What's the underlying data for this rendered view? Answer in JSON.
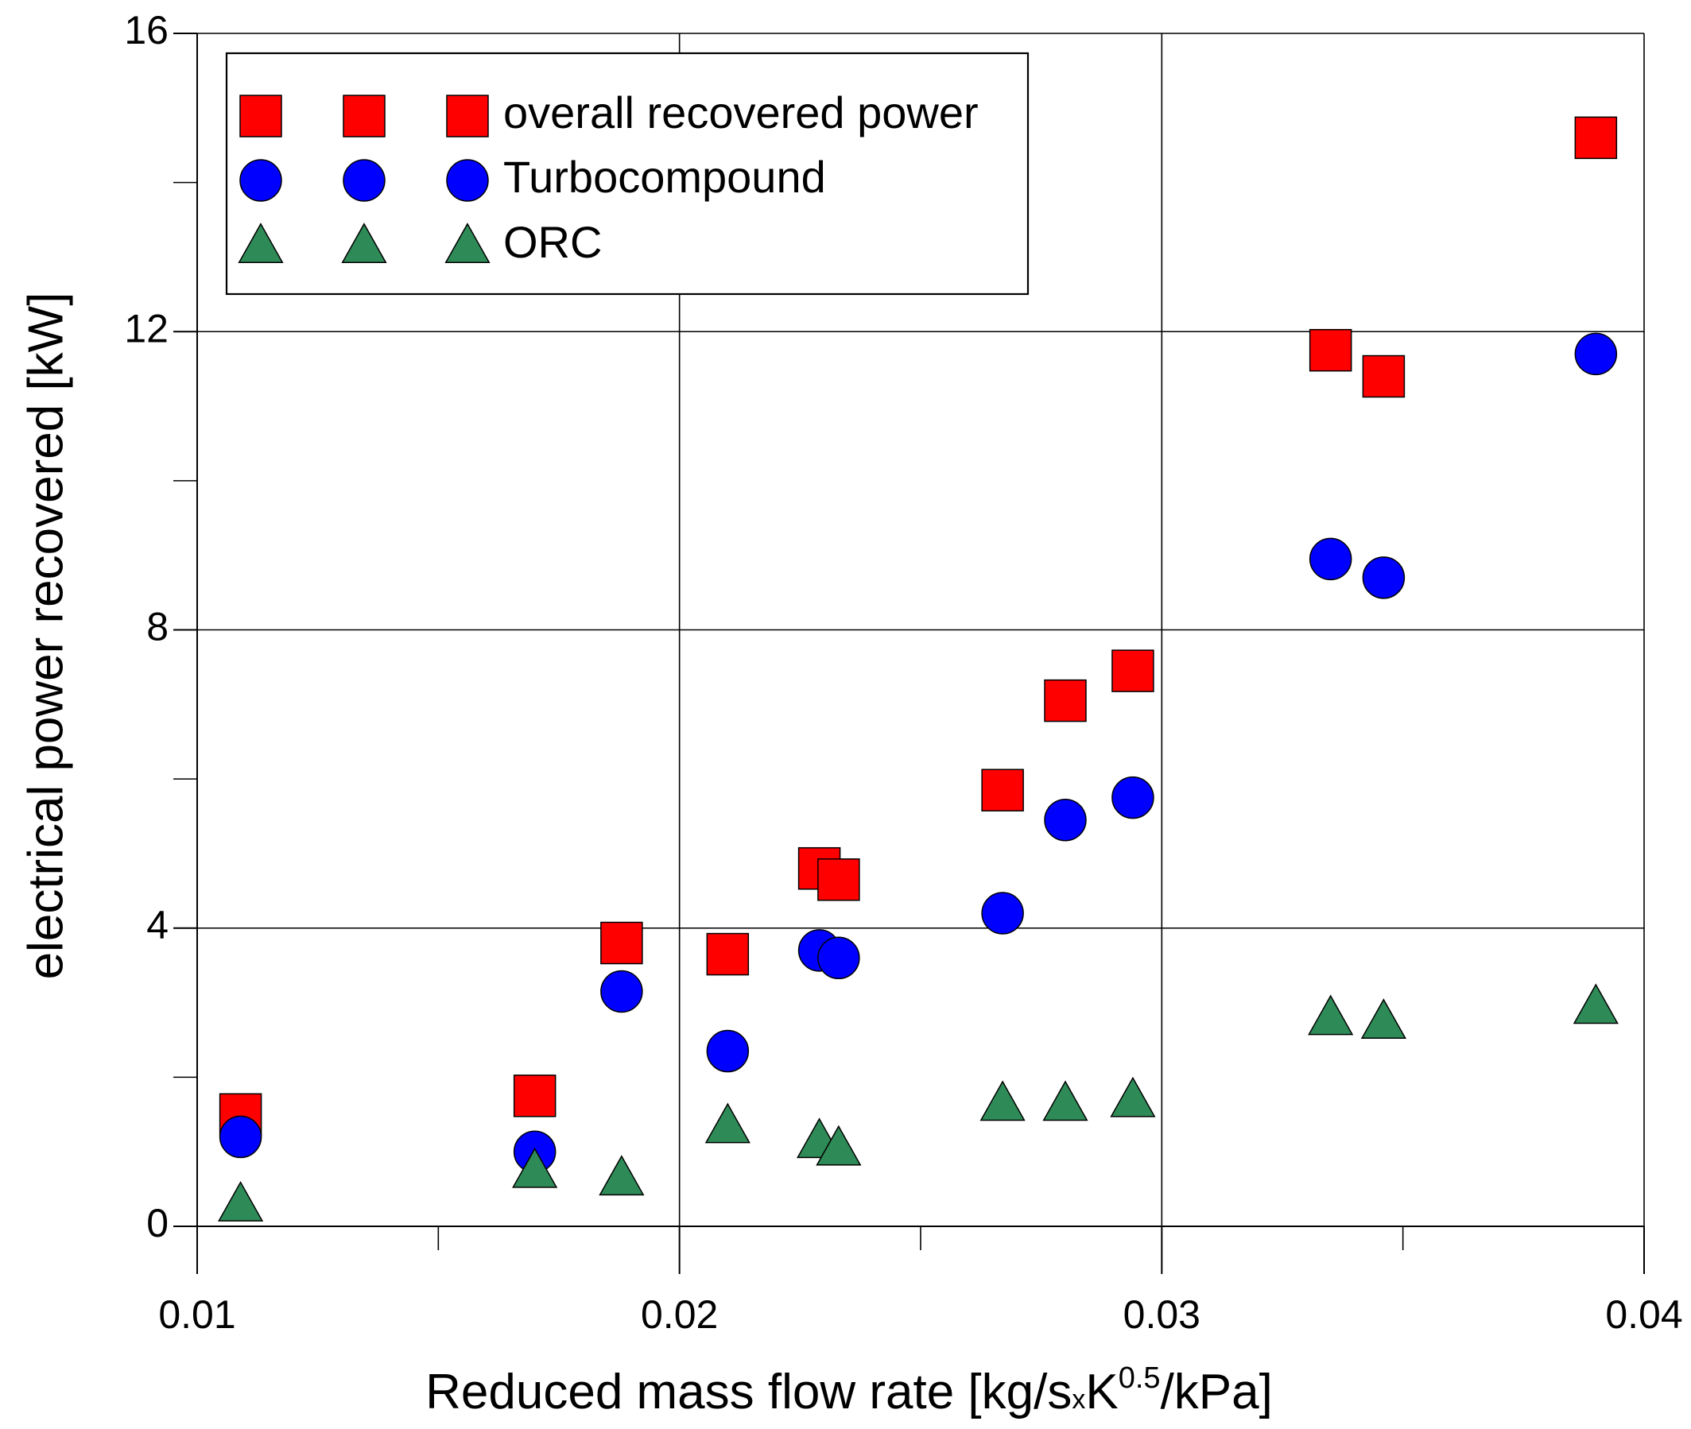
{
  "chart_data": {
    "type": "scatter",
    "title": "",
    "xlabel": {
      "main": "Reduced mass flow rate [kg/s",
      "mult": "x",
      "k": "K",
      "exp": "0.5",
      "rest": "/kPa]"
    },
    "ylabel": "electrical power recovered [kW]",
    "xlim": [
      0.01,
      0.04
    ],
    "ylim": [
      0,
      16
    ],
    "x_major_ticks": [
      0.01,
      0.02,
      0.03,
      0.04
    ],
    "x_tick_labels": [
      "0.01",
      "0.02",
      "0.03",
      "0.04"
    ],
    "x_minor_ticks": [
      0.015,
      0.025,
      0.035
    ],
    "y_major_ticks": [
      0,
      4,
      8,
      12,
      16
    ],
    "y_tick_labels": [
      "0",
      "4",
      "8",
      "12",
      "16"
    ],
    "y_minor_ticks": [
      2,
      6,
      10,
      14
    ],
    "grid": true,
    "legend_position": "top-left",
    "series": [
      {
        "name": "overall recovered power",
        "marker": "square",
        "color": "#ff0000",
        "points": [
          [
            0.0109,
            1.5
          ],
          [
            0.017,
            1.75
          ],
          [
            0.0188,
            3.8
          ],
          [
            0.021,
            3.65
          ],
          [
            0.0229,
            4.8
          ],
          [
            0.0233,
            4.65
          ],
          [
            0.0267,
            5.85
          ],
          [
            0.028,
            7.05
          ],
          [
            0.0294,
            7.45
          ],
          [
            0.0335,
            11.75
          ],
          [
            0.0346,
            11.4
          ],
          [
            0.039,
            14.6
          ]
        ]
      },
      {
        "name": "Turbocompound",
        "marker": "circle",
        "color": "#0000ff",
        "points": [
          [
            0.0109,
            1.2
          ],
          [
            0.017,
            1.0
          ],
          [
            0.0188,
            3.15
          ],
          [
            0.021,
            2.35
          ],
          [
            0.0229,
            3.7
          ],
          [
            0.0233,
            3.6
          ],
          [
            0.0267,
            4.2
          ],
          [
            0.028,
            5.45
          ],
          [
            0.0294,
            5.75
          ],
          [
            0.0335,
            8.95
          ],
          [
            0.0346,
            8.7
          ],
          [
            0.039,
            11.7
          ]
        ]
      },
      {
        "name": "ORC",
        "marker": "triangle",
        "color": "#2e8b57",
        "points": [
          [
            0.0109,
            0.3
          ],
          [
            0.017,
            0.75
          ],
          [
            0.0188,
            0.65
          ],
          [
            0.021,
            1.35
          ],
          [
            0.0229,
            1.15
          ],
          [
            0.0233,
            1.05
          ],
          [
            0.0267,
            1.65
          ],
          [
            0.028,
            1.65
          ],
          [
            0.0294,
            1.7
          ],
          [
            0.0335,
            2.8
          ],
          [
            0.0346,
            2.75
          ],
          [
            0.039,
            2.95
          ]
        ]
      }
    ]
  }
}
